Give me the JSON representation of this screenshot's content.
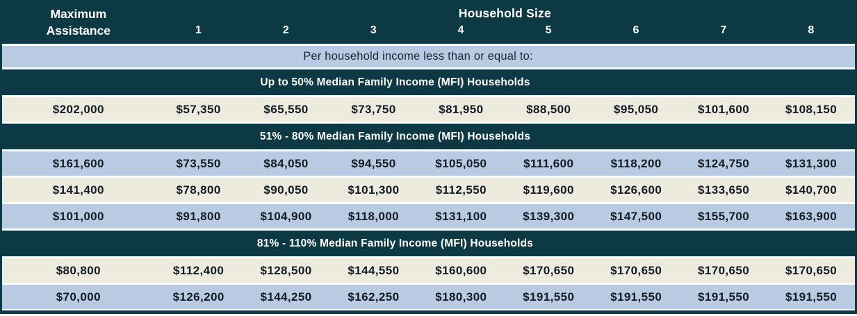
{
  "table": {
    "header": {
      "col0_line1": "Maximum",
      "col0_line2": "Assistance",
      "group_label": "Household Size",
      "columns": [
        "1",
        "2",
        "3",
        "4",
        "5",
        "6",
        "7",
        "8"
      ]
    },
    "subheader": "Per household income less than or equal to:",
    "sections": [
      {
        "title": "Up to 50% Median Family Income (MFI) Households",
        "rows": [
          {
            "max_assistance": "$202,000",
            "values": [
              "$57,350",
              "$65,550",
              "$73,750",
              "$81,950",
              "$88,500",
              "$95,050",
              "$101,600",
              "$108,150"
            ]
          }
        ]
      },
      {
        "title": "51% - 80% Median Family Income (MFI) Households",
        "rows": [
          {
            "max_assistance": "$161,600",
            "values": [
              "$73,550",
              "$84,050",
              "$94,550",
              "$105,050",
              "$111,600",
              "$118,200",
              "$124,750",
              "$131,300"
            ]
          },
          {
            "max_assistance": "$141,400",
            "values": [
              "$78,800",
              "$90,050",
              "$101,300",
              "$112,550",
              "$119,600",
              "$126,600",
              "$133,650",
              "$140,700"
            ]
          },
          {
            "max_assistance": "$101,000",
            "values": [
              "$91,800",
              "$104,900",
              "$118,000",
              "$131,100",
              "$139,300",
              "$147,500",
              "$155,700",
              "$163,900"
            ]
          }
        ]
      },
      {
        "title": "81% - 110% Median Family Income (MFI) Households",
        "rows": [
          {
            "max_assistance": "$80,800",
            "values": [
              "$112,400",
              "$128,500",
              "$144,550",
              "$160,600",
              "$170,650",
              "$170,650",
              "$170,650",
              "$170,650"
            ]
          },
          {
            "max_assistance": "$70,000",
            "values": [
              "$126,200",
              "$144,250",
              "$162,250",
              "$180,300",
              "$191,550",
              "$191,550",
              "$191,550",
              "$191,550"
            ]
          }
        ]
      }
    ],
    "colors": {
      "dark_teal": "#0d3944",
      "light_blue": "#b8cbe3",
      "cream": "#edebdd",
      "separator": "#ffffff",
      "text_dark": "#131c25",
      "text_light": "#ffffff"
    }
  }
}
